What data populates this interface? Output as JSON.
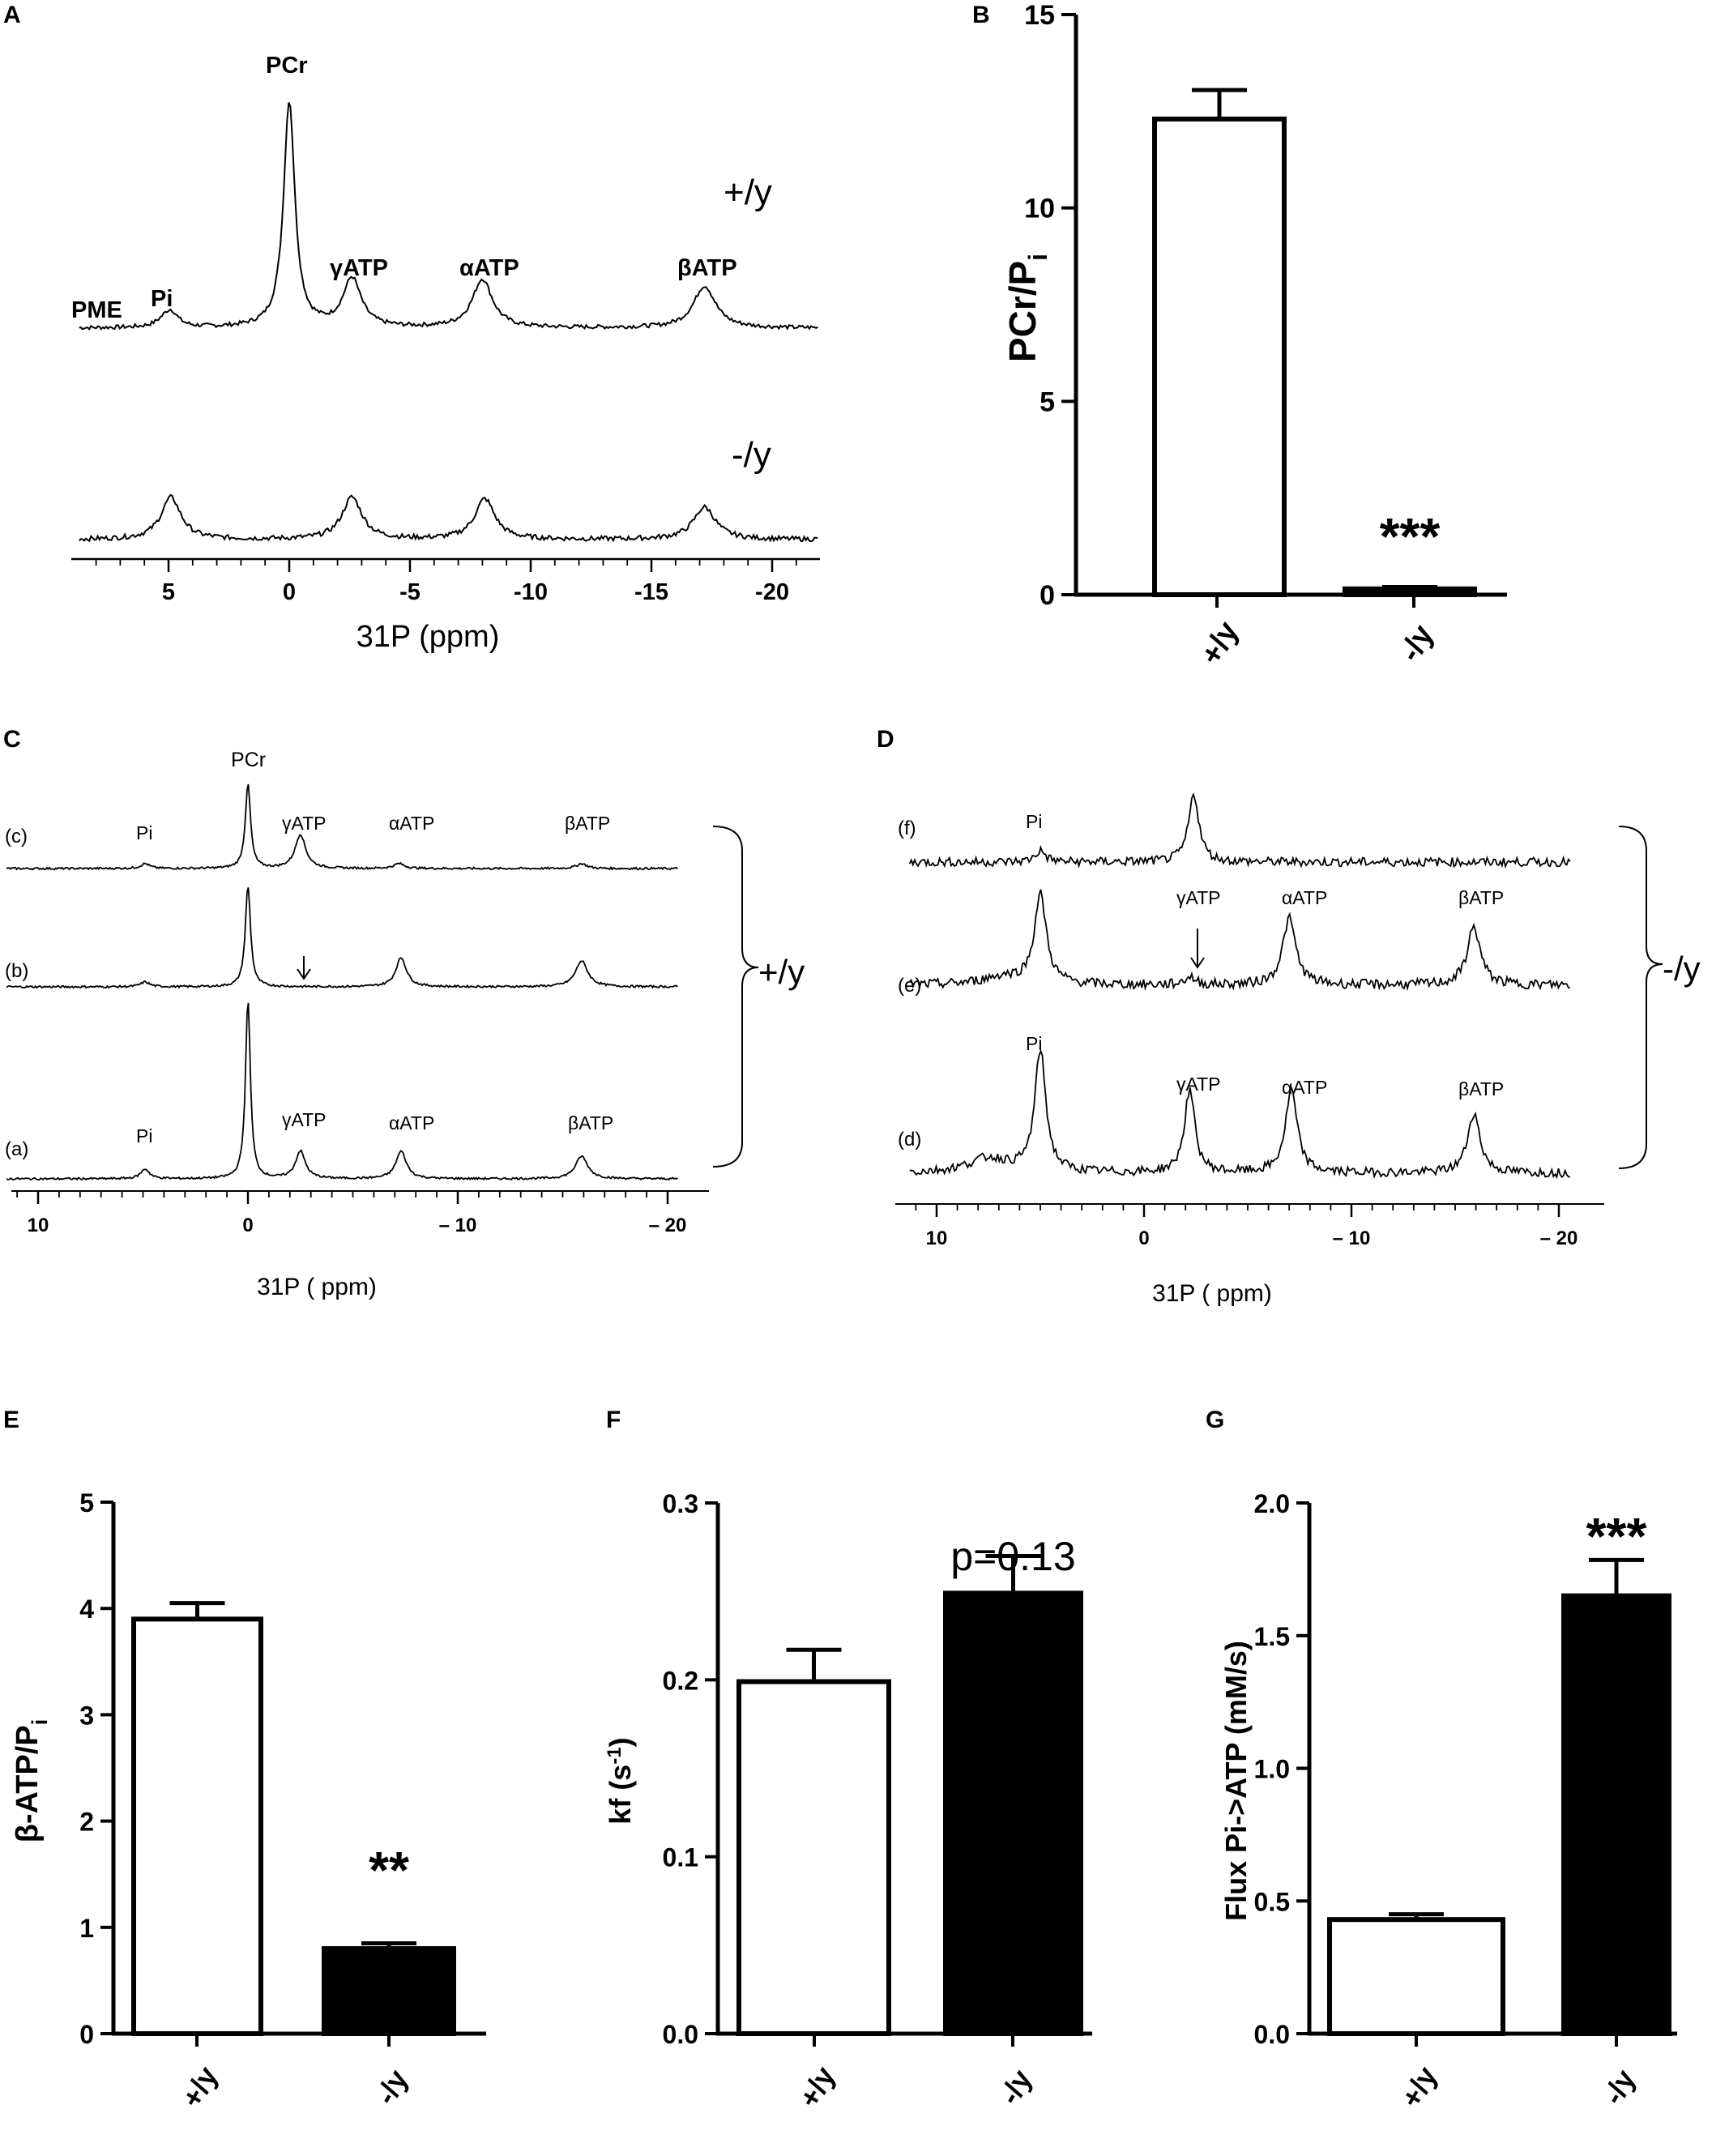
{
  "panels": {
    "A": {
      "label": "A",
      "xlabel": "31P (ppm)",
      "xticks": [
        5,
        0,
        -5,
        -10,
        -15,
        -20
      ],
      "groups": [
        "+/y",
        "-/y"
      ],
      "peaks": [
        "PME",
        "Pi",
        "PCr",
        "γATP",
        "αATP",
        "βATP"
      ]
    },
    "B": {
      "label": "B"
    },
    "C": {
      "label": "C",
      "xlabel": "31P ( ppm)",
      "xticks": [
        10,
        0,
        -10,
        -20
      ],
      "tick_labels": [
        "10",
        "0",
        "– 10",
        "– 20"
      ],
      "traces": [
        "(c)",
        "(b)",
        "(a)"
      ],
      "peaks_c": [
        "Pi",
        "PCr",
        "γATP",
        "αATP",
        "βATP"
      ],
      "peaks_a": [
        "Pi",
        "γATP",
        "αATP",
        "βATP"
      ],
      "group": "+/y"
    },
    "D": {
      "label": "D",
      "xlabel": "31P ( ppm)",
      "xticks": [
        10,
        0,
        -10,
        -20
      ],
      "tick_labels": [
        "10",
        "0",
        "– 10",
        "– 20"
      ],
      "traces": [
        "(f)",
        "(e)",
        "(d)"
      ],
      "peaks_f": [
        "Pi"
      ],
      "peaks_e": [
        "γATP",
        "αATP",
        "βATP"
      ],
      "peaks_d": [
        "Pi",
        "γATP",
        "αATP",
        "βATP"
      ],
      "group": "-/y"
    },
    "E": {
      "label": "E"
    },
    "F": {
      "label": "F"
    },
    "G": {
      "label": "G"
    }
  },
  "chart_data": [
    {
      "panel": "B",
      "type": "bar",
      "categories": [
        "+/y",
        "-/y"
      ],
      "values": [
        12.3,
        0.15
      ],
      "errors": [
        0.75,
        0.05
      ],
      "fills": [
        "#ffffff",
        "#000000"
      ],
      "ylabel": "PCr/Pi",
      "ylim": [
        0,
        15
      ],
      "yticks": [
        0,
        5,
        10,
        15
      ],
      "significance": "***"
    },
    {
      "panel": "E",
      "type": "bar",
      "categories": [
        "+/y",
        "-/y"
      ],
      "values": [
        3.9,
        0.8
      ],
      "errors": [
        0.15,
        0.05
      ],
      "fills": [
        "#ffffff",
        "#000000"
      ],
      "ylabel": "β-ATP/Pi",
      "ylim": [
        0,
        5
      ],
      "yticks": [
        0,
        1,
        2,
        3,
        4,
        5
      ],
      "significance": "**"
    },
    {
      "panel": "F",
      "type": "bar",
      "categories": [
        "+/y",
        "-/y"
      ],
      "values": [
        0.199,
        0.249
      ],
      "errors": [
        0.018,
        0.021
      ],
      "fills": [
        "#ffffff",
        "#000000"
      ],
      "ylabel": "kf (s-1)",
      "ylim": [
        0,
        0.3
      ],
      "yticks": [
        0.0,
        0.1,
        0.2,
        0.3
      ],
      "significance": "p=0.13"
    },
    {
      "panel": "G",
      "type": "bar",
      "categories": [
        "+/y",
        "-/y"
      ],
      "values": [
        0.43,
        1.65
      ],
      "errors": [
        0.02,
        0.135
      ],
      "fills": [
        "#ffffff",
        "#000000"
      ],
      "ylabel": "Flux Pi->ATP (mM/s)",
      "ylim": [
        0,
        2.0
      ],
      "yticks": [
        0.0,
        0.5,
        1.0,
        1.5,
        2.0
      ],
      "significance": "***"
    }
  ]
}
